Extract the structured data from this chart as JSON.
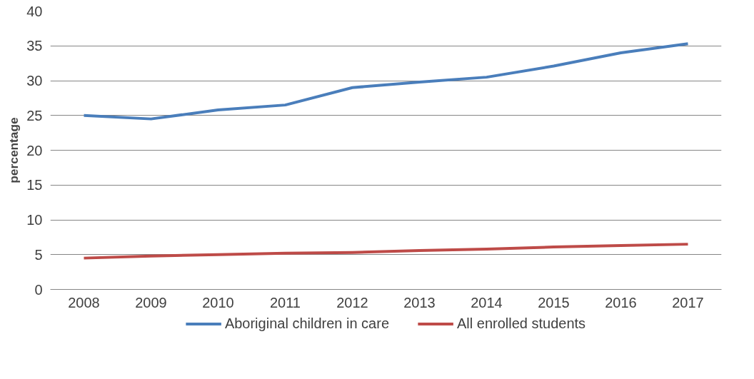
{
  "chart_data": {
    "type": "line",
    "ylabel": "percentage",
    "categories": [
      "2008",
      "2009",
      "2010",
      "2011",
      "2012",
      "2013",
      "2014",
      "2015",
      "2016",
      "2017"
    ],
    "series": [
      {
        "name": "Aboriginal children in care",
        "color": "#4a7ebb",
        "values": [
          25.0,
          24.5,
          25.8,
          26.5,
          29.0,
          29.8,
          30.5,
          32.1,
          34.0,
          35.3
        ]
      },
      {
        "name": "All enrolled students",
        "color": "#be4b48",
        "values": [
          4.5,
          4.8,
          5.0,
          5.2,
          5.3,
          5.6,
          5.8,
          6.1,
          6.3,
          6.5
        ]
      }
    ],
    "ylim": [
      0,
      40
    ],
    "yticks": [
      0,
      5,
      10,
      15,
      20,
      25,
      30,
      35,
      40
    ],
    "grid": "y",
    "legend": "bottom",
    "marker": "none",
    "line_style": "solid"
  }
}
